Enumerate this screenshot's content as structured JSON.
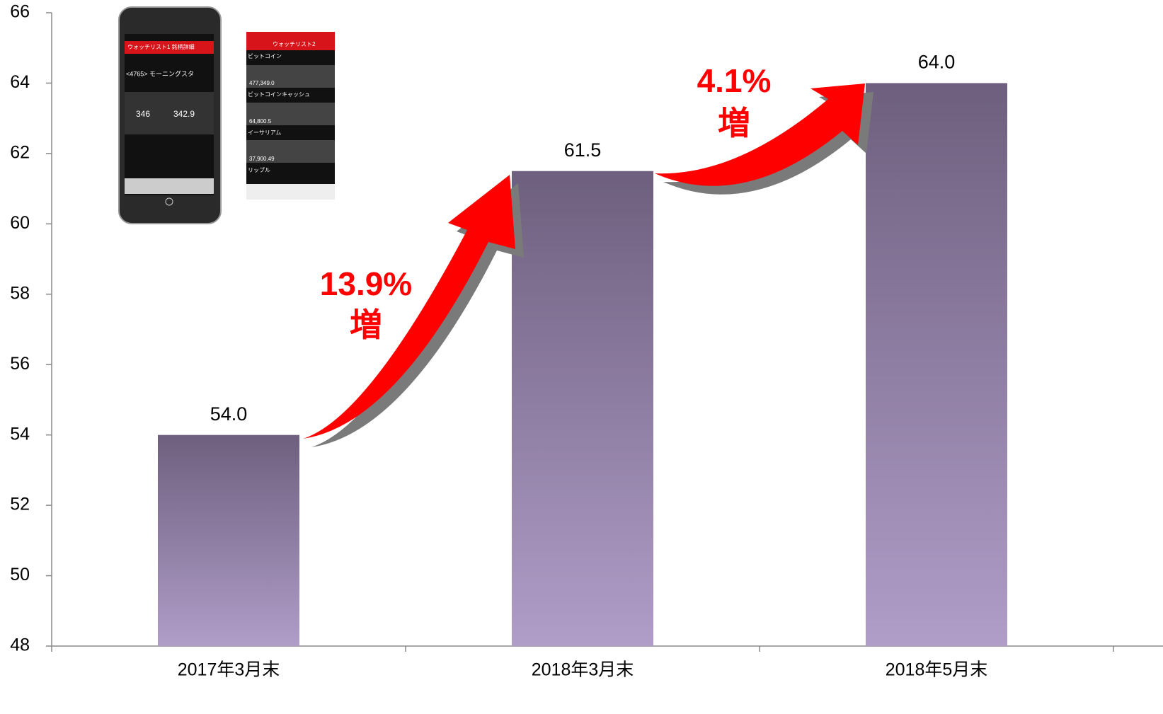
{
  "chart_data": {
    "type": "bar",
    "categories": [
      "2017年3月末",
      "2018年3月末",
      "2018年5月末"
    ],
    "values": [
      54,
      61.5,
      64
    ],
    "value_labels": [
      "54.0",
      "61.5",
      "64.0"
    ],
    "color": "#8a7aa0",
    "ylim": [
      48,
      66
    ],
    "yticks": [
      48,
      50,
      52,
      54,
      56,
      58,
      60,
      62,
      64,
      66
    ],
    "grid": false,
    "annotations": [
      [
        "13.9%",
        "増"
      ],
      [
        "4.1%",
        "増"
      ]
    ]
  },
  "phone_screens": [
    [
      "ウォッチリスト1 銘柄詳細",
      "<4765> モーニングスタ",
      "346",
      "342.9"
    ],
    [
      "ウォッチリスト2",
      "ビットコイン",
      "477,349.0",
      "ビットコインキャッシュ",
      "64,800.5",
      "イーサリアム",
      "37,900.49",
      "リップル"
    ]
  ]
}
